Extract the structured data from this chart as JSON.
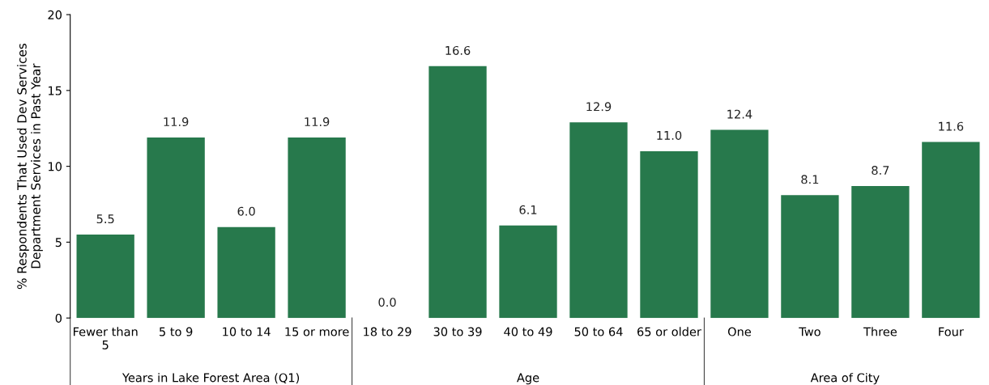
{
  "chart_data": {
    "type": "bar",
    "ylabel": "% Respondents That Used Dev Services\nDepartment Services in Past Year",
    "categories": [
      "Fewer than\n5",
      "5 to 9",
      "10 to 14",
      "15 or more",
      "18 to 29",
      "30 to 39",
      "40 to 49",
      "50 to 64",
      "65 or older",
      "One",
      "Two",
      "Three",
      "Four"
    ],
    "values": [
      5.5,
      11.9,
      6.0,
      11.9,
      0.0,
      16.6,
      6.1,
      12.9,
      11.0,
      12.4,
      8.1,
      8.7,
      11.6
    ],
    "color": "#27794c",
    "ylim": [
      0,
      20
    ],
    "yticks": [
      0,
      5,
      10,
      15,
      20
    ],
    "grid": false,
    "value_labels": [
      "5.5",
      "11.9",
      "6.0",
      "11.9",
      "0.0",
      "16.6",
      "6.1",
      "12.9",
      "11.0",
      "12.4",
      "8.1",
      "8.7",
      "11.6"
    ],
    "annotations": [
      "Years in Lake Forest Area (Q1)",
      "Age",
      "Area of City"
    ]
  }
}
